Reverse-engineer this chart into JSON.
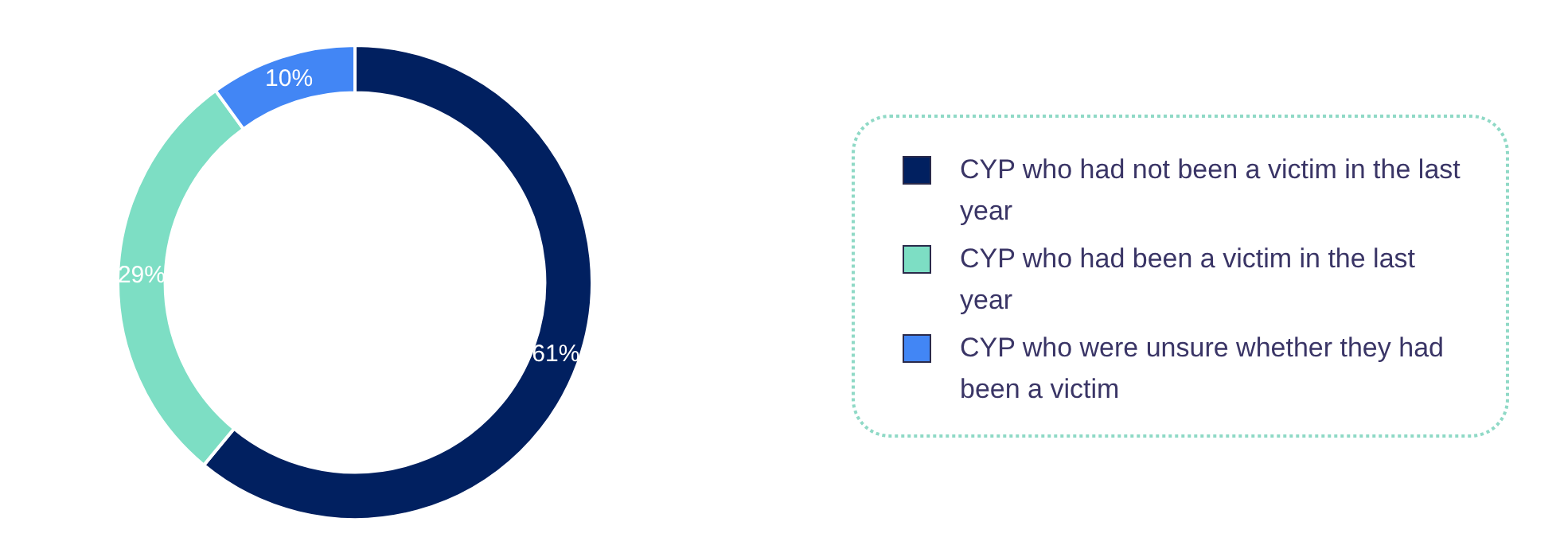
{
  "chart_data": {
    "type": "donut",
    "categories": [
      "CYP who had not been a victim in the last year",
      "CYP who had been a victim in the last year",
      "CYP who were unsure whether they had been a victim"
    ],
    "values": [
      61,
      29,
      10
    ],
    "colors": [
      "#012060",
      "#7ddec4",
      "#4286f5"
    ],
    "value_labels": [
      "61%",
      "29%",
      "10%"
    ],
    "legend": "right"
  }
}
